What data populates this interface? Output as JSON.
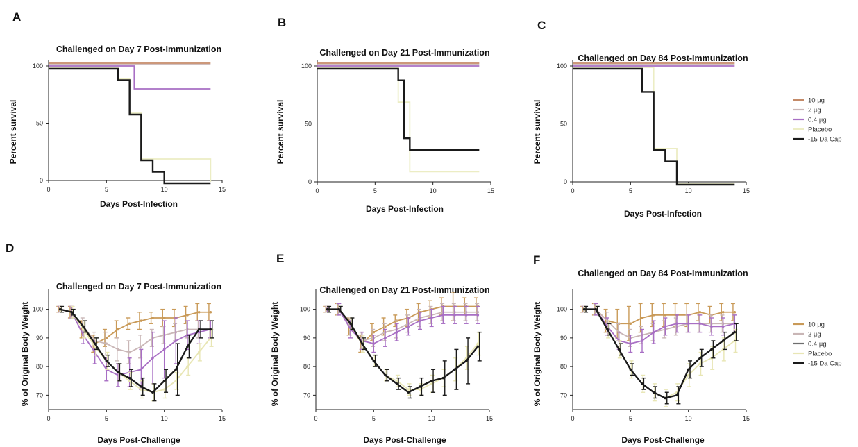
{
  "chart_data": [
    {
      "panel": "A",
      "type": "line",
      "title": "Challenged on Day 7 Post-Immunization",
      "xlabel": "Days Post-Infection",
      "ylabel": "Percent survival",
      "xlim": [
        0,
        15
      ],
      "ylim": [
        0,
        100
      ],
      "xticks": [
        0,
        5,
        10,
        15
      ],
      "yticks": [
        0,
        50,
        100
      ],
      "step": true,
      "series": [
        {
          "name": "10 µg",
          "color": "#c48a68",
          "x": [
            0,
            14
          ],
          "y": [
            100,
            100
          ]
        },
        {
          "name": "2 µg",
          "color": "#c9b6b6",
          "x": [
            0,
            14
          ],
          "y": [
            100,
            100
          ]
        },
        {
          "name": "0.4 µg",
          "color": "#a86fc4",
          "x": [
            0,
            7,
            7.4,
            14
          ],
          "y": [
            100,
            100,
            80,
            80
          ]
        },
        {
          "name": "Placebo",
          "color": "#ecedc4",
          "x": [
            0,
            5,
            6,
            7,
            8,
            14
          ],
          "y": [
            100,
            100,
            90,
            60,
            20,
            0
          ]
        },
        {
          "name": "-15 Da Cap",
          "color": "#1a1a1a",
          "x": [
            0,
            5,
            6,
            7,
            8,
            9,
            10,
            14
          ],
          "y": [
            100,
            100,
            90,
            60,
            20,
            10,
            0,
            0
          ]
        }
      ]
    },
    {
      "panel": "B",
      "type": "line",
      "title": "Challenged on Day 21 Post-Immunization",
      "xlabel": "Days Post-Infection",
      "ylabel": "Percent survival",
      "xlim": [
        0,
        15
      ],
      "ylim": [
        0,
        100
      ],
      "xticks": [
        0,
        5,
        10,
        15
      ],
      "yticks": [
        0,
        50,
        100
      ],
      "step": true,
      "series": [
        {
          "name": "10 µg",
          "color": "#c48a68",
          "x": [
            0,
            14
          ],
          "y": [
            100,
            100
          ]
        },
        {
          "name": "2 µg",
          "color": "#c9b6b6",
          "x": [
            0,
            14
          ],
          "y": [
            100,
            100
          ]
        },
        {
          "name": "0.4 µg",
          "color": "#a86fc4",
          "x": [
            0,
            14
          ],
          "y": [
            100,
            100
          ]
        },
        {
          "name": "Placebo",
          "color": "#ecedc4",
          "x": [
            0,
            6,
            7,
            8,
            14
          ],
          "y": [
            100,
            100,
            70,
            10,
            10
          ]
        },
        {
          "name": "-15 Da Cap",
          "color": "#1a1a1a",
          "x": [
            0,
            6,
            7,
            7.5,
            8,
            14
          ],
          "y": [
            100,
            100,
            90,
            40,
            30,
            30
          ]
        }
      ]
    },
    {
      "panel": "C",
      "type": "line",
      "title": "Challenged on Day 84 Post-Immunization",
      "xlabel": "Days Post-Infection",
      "ylabel": "Percent survival",
      "xlim": [
        0,
        15
      ],
      "ylim": [
        0,
        100
      ],
      "xticks": [
        0,
        5,
        10,
        15
      ],
      "yticks": [
        0,
        50,
        100
      ],
      "step": true,
      "series": [
        {
          "name": "10 µg",
          "color": "#c48a68",
          "x": [
            0,
            14
          ],
          "y": [
            100,
            100
          ]
        },
        {
          "name": "2 µg",
          "color": "#c9b6b6",
          "x": [
            0,
            14
          ],
          "y": [
            100,
            100
          ]
        },
        {
          "name": "0.4 µg",
          "color": "#a86fc4",
          "x": [
            0,
            14
          ],
          "y": [
            100,
            100
          ]
        },
        {
          "name": "Placebo",
          "color": "#ecedc4",
          "x": [
            0,
            6,
            7,
            9,
            14
          ],
          "y": [
            100,
            100,
            30,
            0,
            0
          ]
        },
        {
          "name": "-15 Da Cap",
          "color": "#1a1a1a",
          "x": [
            0,
            6,
            7,
            8,
            9,
            14
          ],
          "y": [
            100,
            80,
            30,
            20,
            0,
            0
          ]
        }
      ]
    },
    {
      "panel": "D",
      "type": "line",
      "title": "Challenged on Day 7 Post-Immunization",
      "xlabel": "Days Post-Challenge",
      "ylabel": "% of Original Body Weight",
      "xlim": [
        0,
        15
      ],
      "ylim": [
        65,
        105
      ],
      "xticks": [
        0,
        5,
        10,
        15
      ],
      "yticks": [
        70,
        80,
        90,
        100
      ],
      "errorbars": true,
      "series": [
        {
          "name": "10 µg",
          "color": "#c99a58",
          "x": [
            1,
            2,
            3,
            4,
            5,
            6,
            7,
            8,
            9,
            10,
            11,
            12,
            13,
            14
          ],
          "y": [
            100,
            99,
            93,
            88,
            90,
            93,
            95,
            96,
            97,
            97,
            97,
            98,
            99,
            99
          ],
          "err": [
            1,
            2,
            3,
            3,
            3,
            3,
            2,
            3,
            2,
            3,
            3,
            3,
            3,
            3
          ]
        },
        {
          "name": "2 µg",
          "color": "#c9b6b6",
          "x": [
            1,
            2,
            3,
            4,
            5,
            6,
            7,
            8,
            9,
            10,
            11,
            12,
            13,
            14
          ],
          "y": [
            100,
            99,
            94,
            89,
            88,
            86,
            85,
            87,
            90,
            91,
            92,
            93,
            93,
            93
          ],
          "err": [
            1,
            2,
            3,
            3,
            4,
            4,
            4,
            4,
            3,
            3,
            3,
            3,
            3,
            3
          ]
        },
        {
          "name": "0.4 µg",
          "color": "#a86fc4",
          "x": [
            1,
            2,
            3,
            4,
            5,
            6,
            7,
            8,
            9,
            10,
            11,
            12,
            13,
            14
          ],
          "y": [
            100,
            99,
            91,
            85,
            79,
            77,
            78,
            79,
            83,
            86,
            89,
            91,
            92,
            93
          ],
          "err": [
            1,
            2,
            3,
            4,
            4,
            4,
            5,
            7,
            9,
            10,
            8,
            5,
            4,
            3
          ]
        },
        {
          "name": "Placebo",
          "color": "#e8e6b4",
          "x": [
            1,
            2,
            3,
            4,
            5,
            6,
            7,
            8,
            9,
            10,
            11,
            12,
            13,
            14
          ],
          "y": [
            100,
            99,
            93,
            87,
            82,
            78,
            75,
            72,
            71,
            72,
            75,
            80,
            85,
            90
          ],
          "err": [
            1,
            2,
            3,
            3,
            3,
            3,
            3,
            3,
            3,
            3,
            3,
            3,
            3,
            3
          ]
        },
        {
          "name": "-15 Da Cap",
          "color": "#1a1a1a",
          "x": [
            1,
            2,
            3,
            4,
            5,
            6,
            7,
            8,
            9,
            10,
            11,
            12,
            13,
            14
          ],
          "y": [
            100,
            99,
            94,
            88,
            82,
            78,
            76,
            73,
            71,
            75,
            79,
            87,
            93,
            93
          ],
          "err": [
            1,
            1,
            2,
            2,
            2,
            3,
            3,
            3,
            3,
            4,
            9,
            4,
            3,
            3
          ]
        }
      ]
    },
    {
      "panel": "E",
      "type": "line",
      "title": "Challenged on Day 21 Post-Immunization",
      "xlabel": "Days Post-Challenge",
      "ylabel": "% of Original Body Weight",
      "xlim": [
        0,
        15
      ],
      "ylim": [
        65,
        105
      ],
      "xticks": [
        0,
        5,
        10,
        15
      ],
      "yticks": [
        70,
        80,
        90,
        100
      ],
      "errorbars": true,
      "series": [
        {
          "name": "10 µg",
          "color": "#c99a58",
          "x": [
            1,
            2,
            3,
            4,
            5,
            6,
            7,
            8,
            9,
            10,
            11,
            12,
            13,
            14
          ],
          "y": [
            100,
            100,
            94,
            88,
            92,
            94,
            96,
            97,
            99,
            100,
            101,
            101,
            101,
            101
          ],
          "err": [
            1,
            2,
            3,
            3,
            3,
            3,
            2,
            3,
            3,
            3,
            3,
            5,
            3,
            3
          ]
        },
        {
          "name": "2 µg",
          "color": "#c9b6b6",
          "x": [
            1,
            2,
            3,
            4,
            5,
            6,
            7,
            8,
            9,
            10,
            11,
            12,
            13,
            14
          ],
          "y": [
            100,
            100,
            94,
            89,
            90,
            92,
            93,
            95,
            97,
            98,
            99,
            99,
            99,
            99
          ],
          "err": [
            1,
            2,
            3,
            3,
            3,
            3,
            3,
            3,
            3,
            3,
            3,
            3,
            3,
            3
          ]
        },
        {
          "name": "0.4 µg",
          "color": "#a86fc4",
          "x": [
            1,
            2,
            3,
            4,
            5,
            6,
            7,
            8,
            9,
            10,
            11,
            12,
            13,
            14
          ],
          "y": [
            100,
            100,
            93,
            89,
            88,
            90,
            92,
            94,
            96,
            97,
            98,
            98,
            98,
            98
          ],
          "err": [
            1,
            2,
            3,
            3,
            3,
            3,
            3,
            3,
            3,
            3,
            3,
            3,
            3,
            3
          ]
        },
        {
          "name": "Placebo",
          "color": "#e8e6b4",
          "x": [
            1,
            2,
            3,
            4,
            5,
            6,
            7,
            8,
            9,
            10,
            11,
            12,
            13,
            14
          ],
          "y": [
            100,
            100,
            95,
            88,
            82,
            77,
            75,
            72,
            72,
            74,
            76,
            79,
            83,
            88
          ],
          "err": [
            1,
            1,
            2,
            3,
            2,
            2,
            2,
            2,
            2,
            3,
            3,
            4,
            4,
            4
          ]
        },
        {
          "name": "-15 Da Cap",
          "color": "#1a1a1a",
          "x": [
            1,
            2,
            3,
            4,
            5,
            6,
            7,
            8,
            9,
            10,
            11,
            12,
            13,
            14
          ],
          "y": [
            100,
            100,
            95,
            88,
            82,
            77,
            74,
            71,
            73,
            75,
            76,
            79,
            82,
            87
          ],
          "err": [
            1,
            1,
            2,
            2,
            2,
            2,
            2,
            2,
            3,
            4,
            6,
            7,
            8,
            5
          ]
        }
      ]
    },
    {
      "panel": "F",
      "type": "line",
      "title": "Challenged on Day 84 Post-Immunization",
      "xlabel": "Days Post-Challenge",
      "ylabel": "% of Original Body Weight",
      "xlim": [
        0,
        15
      ],
      "ylim": [
        65,
        105
      ],
      "xticks": [
        0,
        5,
        10,
        15
      ],
      "yticks": [
        70,
        80,
        90,
        100
      ],
      "errorbars": true,
      "series": [
        {
          "name": "10 µg",
          "color": "#c99a58",
          "x": [
            1,
            2,
            3,
            4,
            5,
            6,
            7,
            8,
            9,
            10,
            11,
            12,
            13,
            14
          ],
          "y": [
            100,
            100,
            96,
            95,
            95,
            97,
            98,
            98,
            98,
            98,
            99,
            98,
            99,
            99
          ],
          "err": [
            1,
            2,
            4,
            5,
            6,
            5,
            4,
            4,
            4,
            4,
            3,
            3,
            3,
            3
          ]
        },
        {
          "name": "2 µg",
          "color": "#c9b6b6",
          "x": [
            1,
            2,
            3,
            4,
            5,
            6,
            7,
            8,
            9,
            10,
            11,
            12,
            13,
            14
          ],
          "y": [
            100,
            100,
            96,
            92,
            90,
            91,
            92,
            93,
            94,
            95,
            95,
            95,
            95,
            95
          ],
          "err": [
            1,
            2,
            3,
            3,
            3,
            3,
            3,
            3,
            3,
            3,
            3,
            3,
            3,
            3
          ]
        },
        {
          "name": "0.4 µg",
          "color": "#a86fc4",
          "x": [
            1,
            2,
            3,
            4,
            5,
            6,
            7,
            8,
            9,
            10,
            11,
            12,
            13,
            14
          ],
          "y": [
            100,
            100,
            94,
            89,
            88,
            89,
            92,
            94,
            95,
            95,
            95,
            94,
            94,
            95
          ],
          "err": [
            1,
            2,
            3,
            3,
            3,
            4,
            4,
            3,
            3,
            3,
            3,
            3,
            3,
            3
          ]
        },
        {
          "name": "Placebo",
          "color": "#e8e6b4",
          "x": [
            1,
            2,
            3,
            4,
            5,
            6,
            7,
            8,
            9,
            10,
            11,
            12,
            13,
            14
          ],
          "y": [
            100,
            100,
            93,
            86,
            79,
            74,
            71,
            69,
            71,
            77,
            81,
            83,
            86,
            89
          ],
          "err": [
            1,
            1,
            3,
            3,
            3,
            3,
            3,
            3,
            3,
            4,
            4,
            4,
            4,
            4
          ]
        },
        {
          "name": "-15 Da Cap",
          "color": "#1a1a1a",
          "x": [
            1,
            2,
            3,
            4,
            5,
            6,
            7,
            8,
            9,
            10,
            11,
            12,
            13,
            14
          ],
          "y": [
            100,
            100,
            93,
            86,
            79,
            74,
            71,
            69,
            70,
            79,
            83,
            86,
            89,
            92
          ],
          "err": [
            1,
            1,
            2,
            2,
            2,
            2,
            2,
            2,
            3,
            3,
            3,
            3,
            3,
            3
          ]
        }
      ]
    }
  ],
  "legends": [
    {
      "entries": [
        {
          "label": "10 µg",
          "color": "#c48a68"
        },
        {
          "label": "2 µg",
          "color": "#c9b6b6"
        },
        {
          "label": "0.4 µg",
          "color": "#a86fc4"
        },
        {
          "label": "Placebo",
          "color": "#ecedc4"
        },
        {
          "label": "-15 Da Cap",
          "color": "#1a1a1a"
        }
      ]
    },
    {
      "entries": [
        {
          "label": "10 µg",
          "color": "#c99a58"
        },
        {
          "label": "2 µg",
          "color": "#c9b6b6"
        },
        {
          "label": "0.4 µg",
          "color": "#6e6e6e"
        },
        {
          "label": "Placebo",
          "color": "#e8e6b4"
        },
        {
          "label": "-15 Da Cap",
          "color": "#1a1a1a"
        }
      ]
    }
  ]
}
